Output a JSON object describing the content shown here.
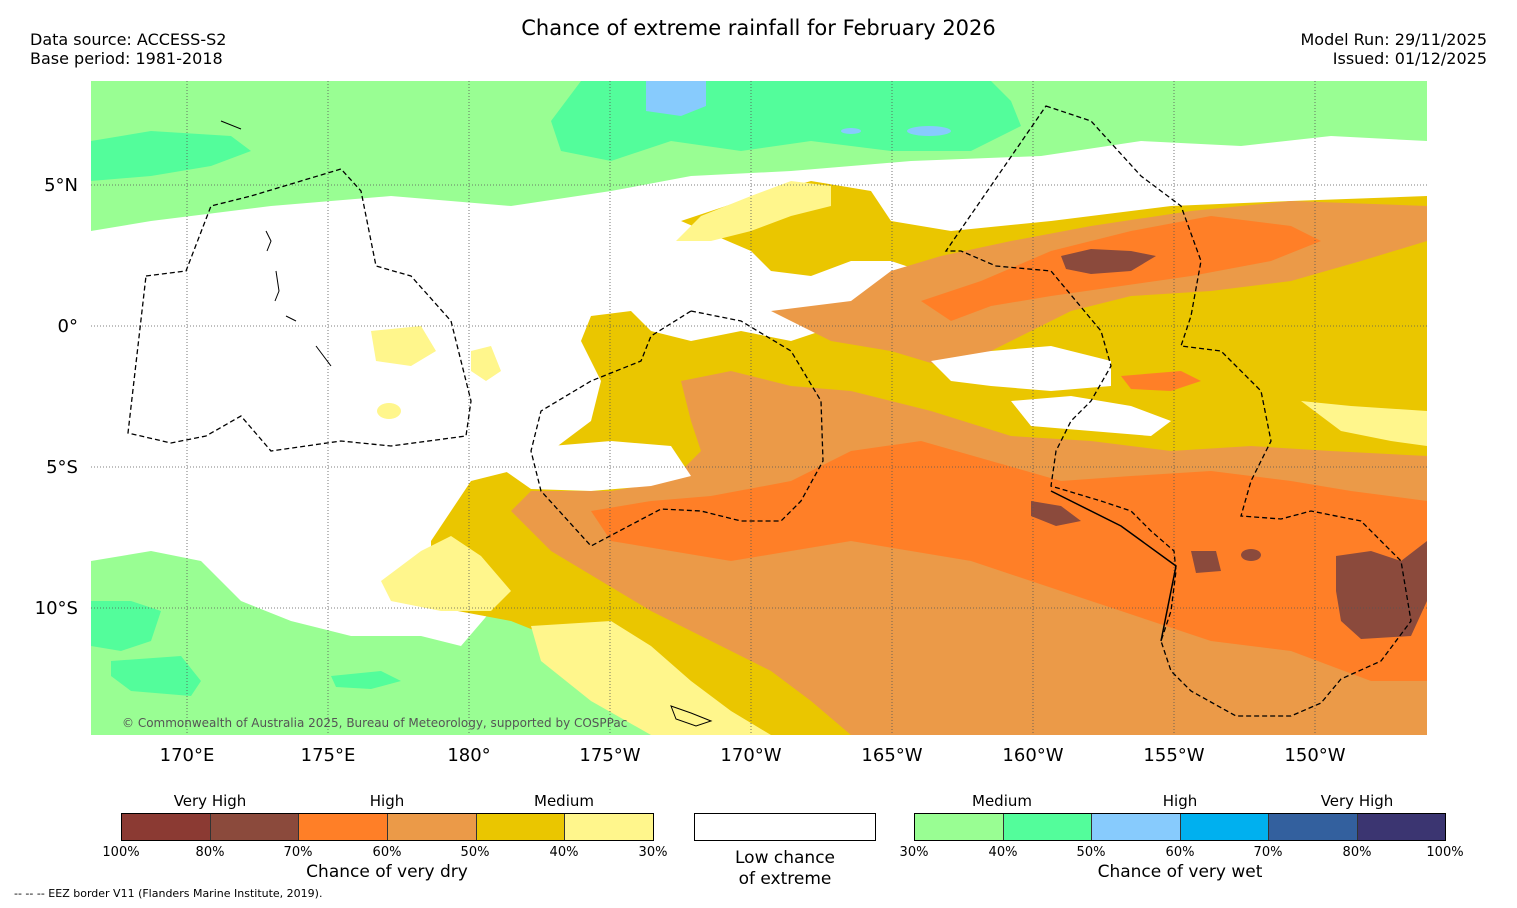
{
  "title": "Chance of extreme rainfall for February 2026",
  "meta": {
    "data_source": "Data source: ACCESS-S2",
    "base_period": "Base period: 1981-2018",
    "model_run": "Model Run: 29/11/2025",
    "issued": "Issued: 01/12/2025"
  },
  "axes": {
    "lat_labels": [
      "5°N",
      "0°",
      "5°S",
      "10°S"
    ],
    "lon_labels": [
      "170°E",
      "175°E",
      "180°",
      "175°W",
      "170°W",
      "165°W",
      "160°W",
      "155°W",
      "150°W"
    ]
  },
  "copyright": "© Commonwealth of Australia 2025, Bureau of Meteorology, supported by COSPPac",
  "legend": {
    "dry": {
      "bands": [
        "Very High",
        "High",
        "Medium"
      ],
      "ticks": [
        "100%",
        "80%",
        "70%",
        "60%",
        "50%",
        "40%",
        "30%"
      ],
      "colors": [
        "#8b3a33",
        "#8b4a3c",
        "#ff7f27",
        "#eb9a48",
        "#eac600",
        "#fff68c"
      ],
      "title": "Chance of very dry"
    },
    "low": {
      "title_line1": "Low chance",
      "title_line2": "of extreme"
    },
    "wet": {
      "bands": [
        "Medium",
        "High",
        "Very High"
      ],
      "ticks": [
        "30%",
        "40%",
        "50%",
        "60%",
        "70%",
        "80%",
        "100%"
      ],
      "colors": [
        "#99fe93",
        "#53fd9b",
        "#87cbfd",
        "#00b0ef",
        "#33609e",
        "#3b3571"
      ],
      "title": "Chance of very wet"
    }
  },
  "footer": "-- -- -- EEZ border V11 (Flanders Marine Institute, 2019)."
}
